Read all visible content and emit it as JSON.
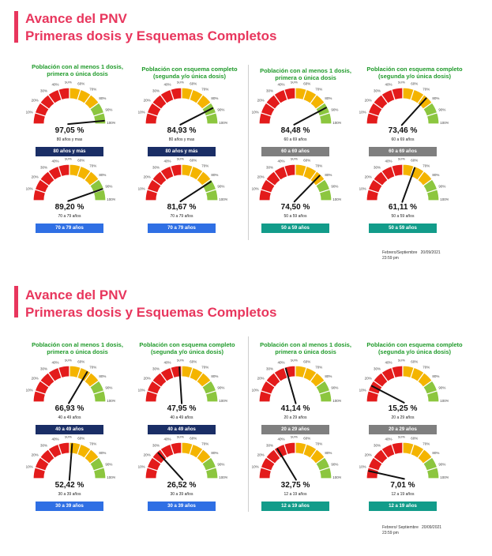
{
  "colors": {
    "title": "#e8365d",
    "header_text": "#1f9a2a",
    "arc_red": "#e31b1b",
    "arc_yellow": "#f4b400",
    "arc_green": "#8cc63f",
    "needle": "#111111",
    "badge_navy": "#1a2e66",
    "badge_gray": "#7f7f7f",
    "badge_blue": "#2f6fe4",
    "badge_teal": "#129c8a"
  },
  "ticks": [
    "10%",
    "20%",
    "30%",
    "40%",
    "50%",
    "60%",
    "70%",
    "80%",
    "90%",
    "100%"
  ],
  "panels": [
    {
      "title_line1": "Avance del PNV",
      "title_line2": "Primeras dosis y Esquemas Completos",
      "col_headers": [
        "Población con al menos 1 dosis, primera o única dosis",
        "Población con esquema completo (segunda y/o única dosis)",
        "Población con al menos 1 dosis, primera o única dosis",
        "Población con esquema completo (segunda y/o única dosis)"
      ],
      "footnote": "Febrero/Septiembre   20/09/2021\n23:59 pm"
    },
    {
      "title_line1": "Avance del PNV",
      "title_line2": "Primeras dosis y Esquemas Completos",
      "col_headers": [
        "Población con al menos 1 dosis, primera o única dosis",
        "Población con esquema completo (segunda y/o única dosis)",
        "Población con al menos 1 dosis, primera o única dosis",
        "Población con esquema completo (segunda y/o única dosis)"
      ],
      "footnote": "Febrero/ Septiembre   20/09/2021\n23:59 pm"
    }
  ],
  "chart_data": [
    {
      "type": "gauge",
      "value_label": "97,05 %",
      "value": 97.05,
      "sublabel": "80 años y mas",
      "badge": "80 años y más",
      "badge_color": "navy",
      "range": [
        0,
        100
      ]
    },
    {
      "type": "gauge",
      "value_label": "84,93 %",
      "value": 84.93,
      "sublabel": "80 años y mas",
      "badge": "80 años y más",
      "badge_color": "navy",
      "range": [
        0,
        100
      ]
    },
    {
      "type": "gauge",
      "value_label": "84,48 %",
      "value": 84.48,
      "sublabel": "60 a 69 años",
      "badge": "60 a 69 años",
      "badge_color": "gray",
      "range": [
        0,
        100
      ]
    },
    {
      "type": "gauge",
      "value_label": "73,46 %",
      "value": 73.46,
      "sublabel": "60 a 69 años",
      "badge": "60 a 69 años",
      "badge_color": "gray",
      "range": [
        0,
        100
      ]
    },
    {
      "type": "gauge",
      "value_label": "89,20 %",
      "value": 89.2,
      "sublabel": "70 a 79 años",
      "badge": "70 a 79 años",
      "badge_color": "blue",
      "range": [
        0,
        100
      ]
    },
    {
      "type": "gauge",
      "value_label": "81,67 %",
      "value": 81.67,
      "sublabel": "70 a 79 años",
      "badge": "70 a 79 años",
      "badge_color": "blue",
      "range": [
        0,
        100
      ]
    },
    {
      "type": "gauge",
      "value_label": "74,50 %",
      "value": 74.5,
      "sublabel": "50 a 59 años",
      "badge": "50 a 59 años",
      "badge_color": "teal",
      "range": [
        0,
        100
      ]
    },
    {
      "type": "gauge",
      "value_label": "61,11 %",
      "value": 61.11,
      "sublabel": "50 a 59 años",
      "badge": "50 a 59 años",
      "badge_color": "teal",
      "range": [
        0,
        100
      ]
    },
    {
      "type": "gauge",
      "value_label": "66,93 %",
      "value": 66.93,
      "sublabel": "40 a 49 años",
      "badge": "40 a 49 años",
      "badge_color": "navy",
      "range": [
        0,
        100
      ]
    },
    {
      "type": "gauge",
      "value_label": "47,95 %",
      "value": 47.95,
      "sublabel": "40 a 49 años",
      "badge": "40 a 49 años",
      "badge_color": "navy",
      "range": [
        0,
        100
      ]
    },
    {
      "type": "gauge",
      "value_label": "41,14 %",
      "value": 41.14,
      "sublabel": "20 a 29 años",
      "badge": "20 a 29 años",
      "badge_color": "gray",
      "range": [
        0,
        100
      ]
    },
    {
      "type": "gauge",
      "value_label": "15,25 %",
      "value": 15.25,
      "sublabel": "20 a 29 años",
      "badge": "20 a 29 años",
      "badge_color": "gray",
      "range": [
        0,
        100
      ]
    },
    {
      "type": "gauge",
      "value_label": "52,42 %",
      "value": 52.42,
      "sublabel": "30 a 39 años",
      "badge": "30 a 39 años",
      "badge_color": "blue",
      "range": [
        0,
        100
      ]
    },
    {
      "type": "gauge",
      "value_label": "26,52 %",
      "value": 26.52,
      "sublabel": "30 a 39 años",
      "badge": "30 a 39 años",
      "badge_color": "blue",
      "range": [
        0,
        100
      ]
    },
    {
      "type": "gauge",
      "value_label": "32,75 %",
      "value": 32.75,
      "sublabel": "12 a 19 años",
      "badge": "12 a 19 años",
      "badge_color": "teal",
      "range": [
        0,
        100
      ]
    },
    {
      "type": "gauge",
      "value_label": "7,01 %",
      "value": 7.01,
      "sublabel": "12 a 19 años",
      "badge": "12 a 19 años",
      "badge_color": "teal",
      "range": [
        0,
        100
      ]
    }
  ]
}
